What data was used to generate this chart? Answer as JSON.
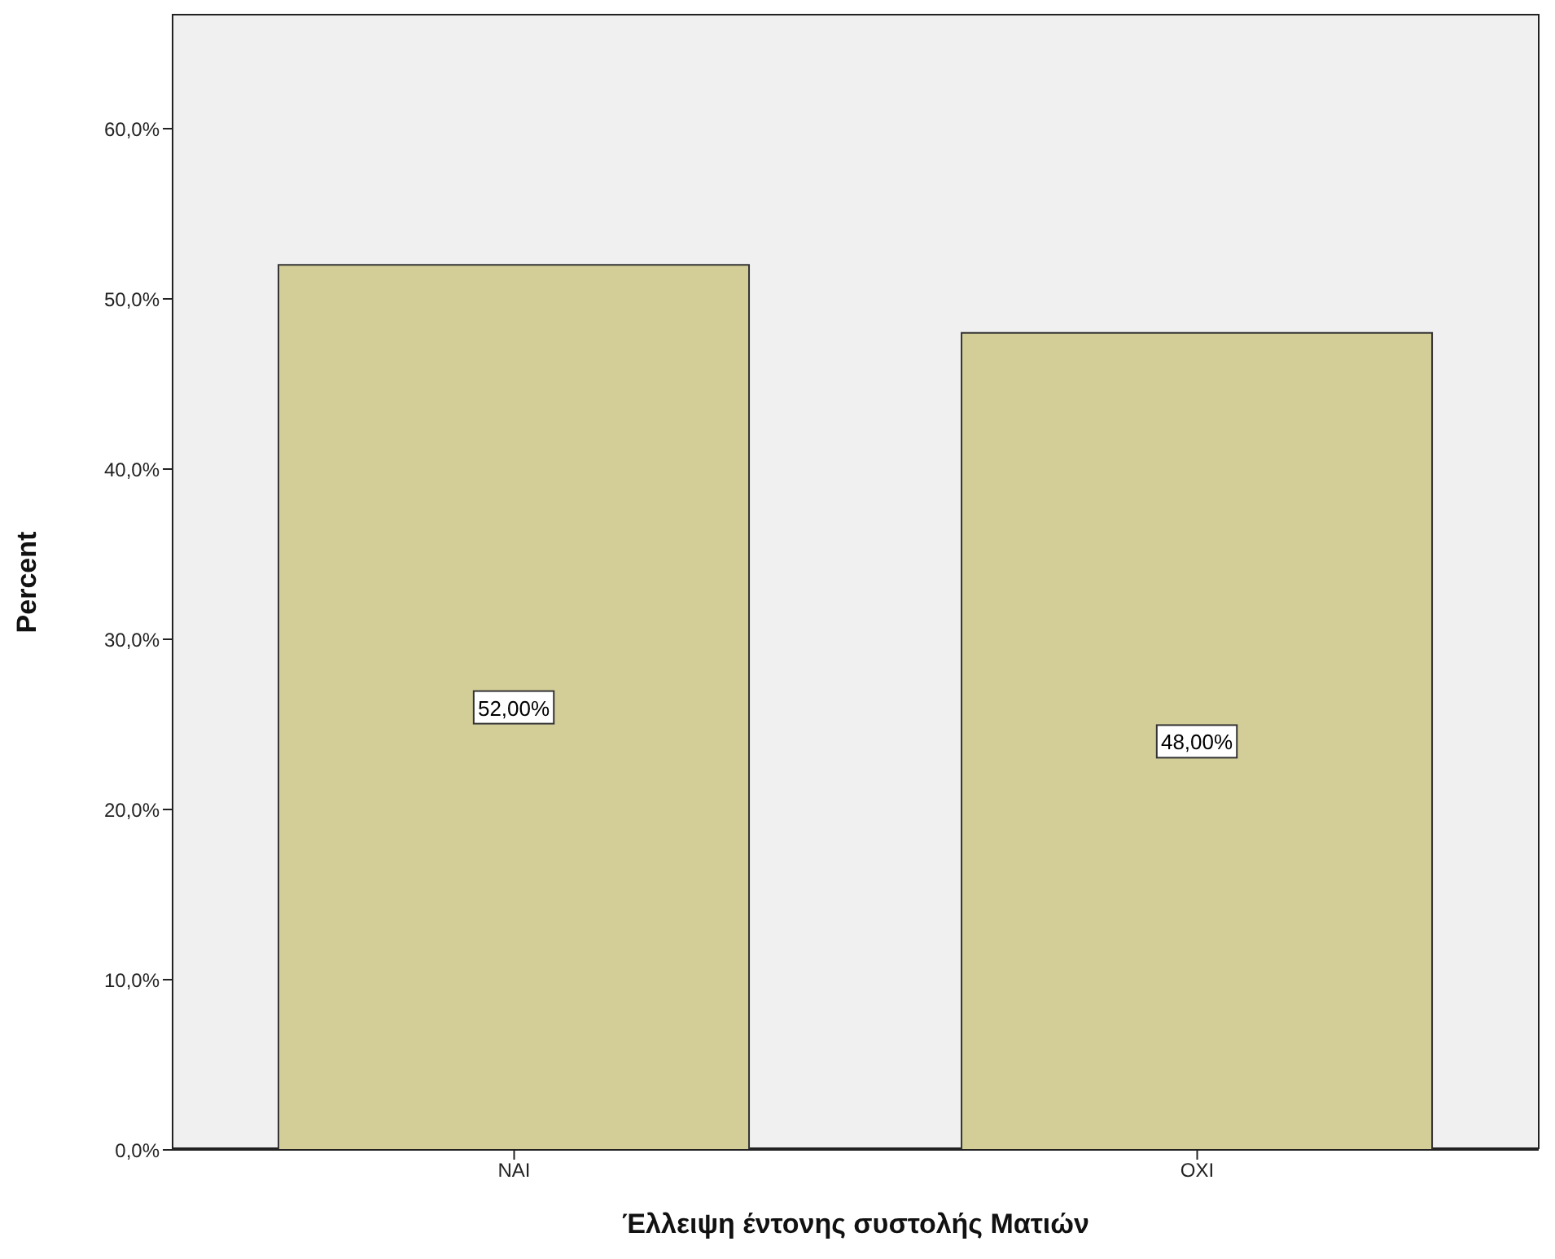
{
  "chart_data": {
    "type": "bar",
    "xlabel": "Έλλειψη έντονης συστολής Ματιών",
    "ylabel": "Percent",
    "categories": [
      "ΝΑΙ",
      "ΟΧΙ"
    ],
    "values": [
      52,
      48
    ],
    "color": "#d3ce98",
    "value_labels": [
      "52,00%",
      "48,00%"
    ],
    "ylim": [
      0,
      66.7
    ],
    "yticks": [
      {
        "value": 0,
        "label": "0,0%"
      },
      {
        "value": 10,
        "label": "10,0%"
      },
      {
        "value": 20,
        "label": "20,0%"
      },
      {
        "value": 30,
        "label": "30,0%"
      },
      {
        "value": 40,
        "label": "40,0%"
      },
      {
        "value": 50,
        "label": "50,0%"
      },
      {
        "value": 60,
        "label": "60,0%"
      }
    ],
    "grid": false,
    "legend": false
  }
}
